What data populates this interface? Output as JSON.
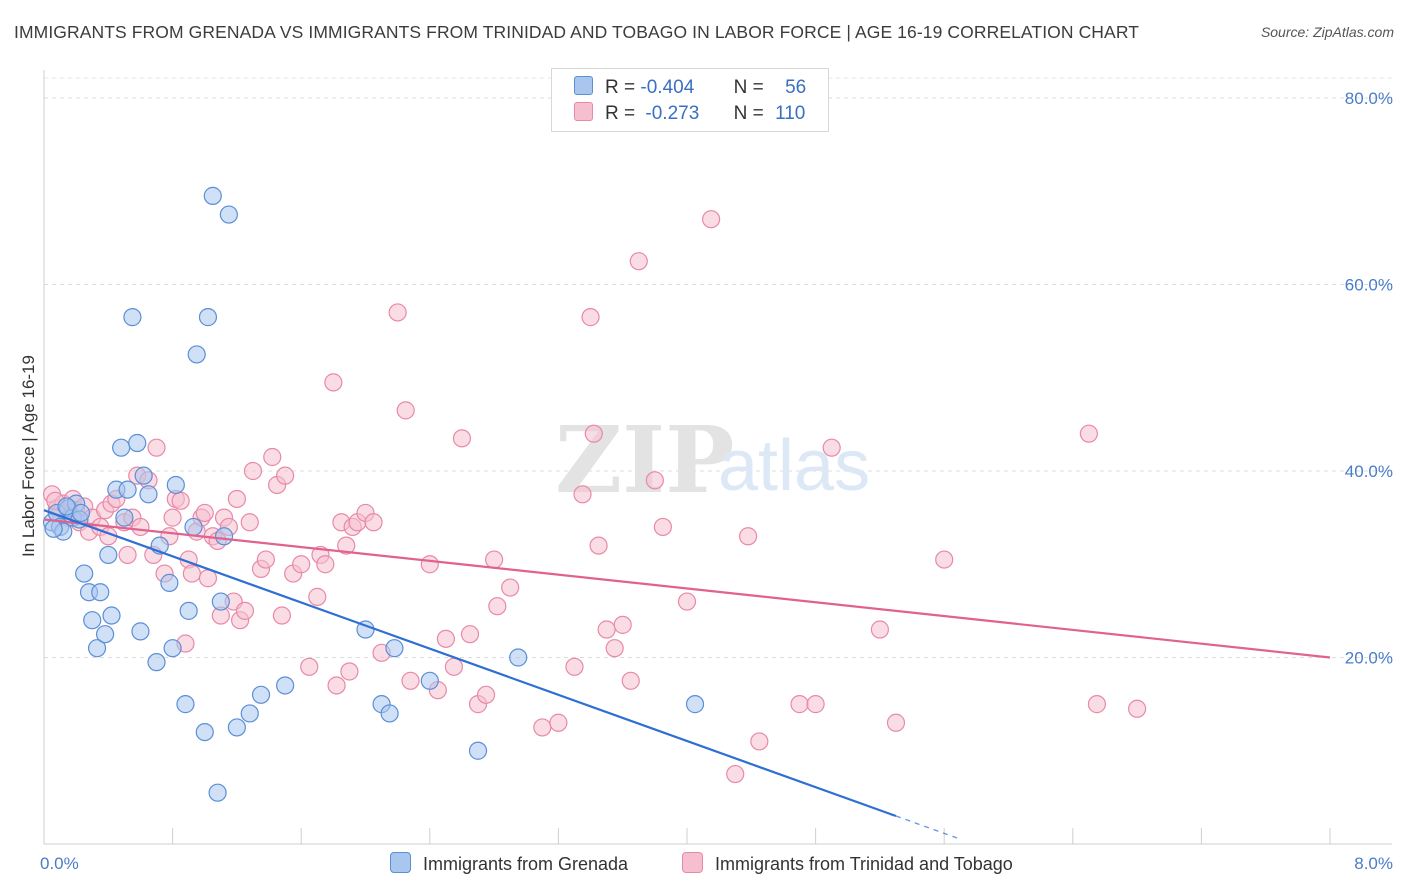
{
  "header": {
    "title": "IMMIGRANTS FROM GRENADA VS IMMIGRANTS FROM TRINIDAD AND TOBAGO IN LABOR FORCE | AGE 16-19 CORRELATION CHART",
    "source": "Source: ZipAtlas.com"
  },
  "legend": {
    "r_label": "R =",
    "n_label": "N =",
    "rows": [
      {
        "r": "-0.404",
        "n": "56"
      },
      {
        "r": "-0.273",
        "n": "110"
      }
    ]
  },
  "watermark": {
    "zip": "ZIP",
    "atlas": "atlas"
  },
  "colors": {
    "grenada_fill": "#a9c6ef",
    "grenada_stroke": "#5b8fd6",
    "grenada_line": "#2e6fd4",
    "trinidad_fill": "#f6bfd0",
    "trinidad_stroke": "#e889a8",
    "trinidad_line": "#e0628e",
    "tick_label": "#4a7cc9"
  },
  "chart_data": {
    "type": "scatter",
    "title": "IMMIGRANTS FROM GRENADA VS IMMIGRANTS FROM TRINIDAD AND TOBAGO IN LABOR FORCE | AGE 16-19 CORRELATION CHART",
    "xlabel": "",
    "ylabel": "In Labor Force | Age 16-19",
    "xlim": [
      0,
      8
    ],
    "ylim": [
      0,
      83
    ],
    "x_tick_labels": [
      {
        "value": 0,
        "label": "0.0%"
      },
      {
        "value": 8,
        "label": "8.0%"
      }
    ],
    "y_ticks": [
      {
        "value": 20,
        "label": "20.0%"
      },
      {
        "value": 40,
        "label": "40.0%"
      },
      {
        "value": 60,
        "label": "60.0%"
      },
      {
        "value": 80,
        "label": "80.0%"
      }
    ],
    "grid": "horizontal dashed",
    "legend_position": "top-center",
    "series": [
      {
        "name": "Immigrants from Grenada",
        "r": -0.404,
        "n": 56,
        "trend": {
          "x0": 0,
          "y0": 35.8,
          "x1": 5.3,
          "y1": 3.0,
          "dashed_to_x": 5.7
        },
        "points": [
          [
            0.05,
            34.5
          ],
          [
            0.08,
            35.5
          ],
          [
            0.1,
            34.0
          ],
          [
            0.12,
            33.5
          ],
          [
            0.15,
            36.0
          ],
          [
            0.18,
            35.0
          ],
          [
            0.2,
            36.5
          ],
          [
            0.22,
            34.8
          ],
          [
            0.25,
            29.0
          ],
          [
            0.28,
            27.0
          ],
          [
            0.3,
            24.0
          ],
          [
            0.33,
            21.0
          ],
          [
            0.35,
            27.0
          ],
          [
            0.38,
            22.5
          ],
          [
            0.4,
            31.0
          ],
          [
            0.42,
            24.5
          ],
          [
            0.45,
            38.0
          ],
          [
            0.48,
            42.5
          ],
          [
            0.5,
            35.0
          ],
          [
            0.52,
            38.0
          ],
          [
            0.55,
            56.5
          ],
          [
            0.58,
            43.0
          ],
          [
            0.6,
            22.8
          ],
          [
            0.62,
            39.5
          ],
          [
            0.65,
            37.5
          ],
          [
            0.7,
            19.5
          ],
          [
            0.72,
            32.0
          ],
          [
            0.78,
            28.0
          ],
          [
            0.8,
            21.0
          ],
          [
            0.82,
            38.5
          ],
          [
            0.88,
            15.0
          ],
          [
            0.9,
            25.0
          ],
          [
            0.93,
            34.0
          ],
          [
            0.95,
            52.5
          ],
          [
            1.0,
            12.0
          ],
          [
            1.02,
            56.5
          ],
          [
            1.05,
            69.5
          ],
          [
            1.08,
            5.5
          ],
          [
            1.1,
            26.0
          ],
          [
            1.12,
            33.0
          ],
          [
            1.15,
            67.5
          ],
          [
            1.2,
            12.5
          ],
          [
            1.28,
            14.0
          ],
          [
            1.35,
            16.0
          ],
          [
            1.5,
            17.0
          ],
          [
            2.0,
            23.0
          ],
          [
            2.1,
            15.0
          ],
          [
            2.15,
            14.0
          ],
          [
            2.18,
            21.0
          ],
          [
            2.4,
            17.5
          ],
          [
            2.7,
            10.0
          ],
          [
            2.95,
            20.0
          ],
          [
            4.05,
            15.0
          ],
          [
            0.06,
            33.8
          ],
          [
            0.14,
            36.2
          ],
          [
            0.23,
            35.5
          ]
        ]
      },
      {
        "name": "Immigrants from Trinidad and Tobago",
        "r": -0.273,
        "n": 110,
        "trend": {
          "x0": 0,
          "y0": 34.8,
          "x1": 8.0,
          "y1": 20.0
        },
        "points": [
          [
            0.05,
            37.5
          ],
          [
            0.08,
            36.0
          ],
          [
            0.1,
            35.5
          ],
          [
            0.12,
            36.5
          ],
          [
            0.15,
            35.0
          ],
          [
            0.18,
            37.0
          ],
          [
            0.2,
            35.8
          ],
          [
            0.22,
            34.5
          ],
          [
            0.25,
            36.2
          ],
          [
            0.28,
            33.5
          ],
          [
            0.3,
            35.0
          ],
          [
            0.35,
            34.0
          ],
          [
            0.38,
            35.8
          ],
          [
            0.4,
            33.0
          ],
          [
            0.42,
            36.5
          ],
          [
            0.45,
            37.0
          ],
          [
            0.5,
            34.5
          ],
          [
            0.52,
            31.0
          ],
          [
            0.55,
            35.0
          ],
          [
            0.58,
            39.5
          ],
          [
            0.6,
            34.0
          ],
          [
            0.65,
            39.0
          ],
          [
            0.68,
            31.0
          ],
          [
            0.7,
            42.5
          ],
          [
            0.75,
            29.0
          ],
          [
            0.78,
            33.0
          ],
          [
            0.8,
            35.0
          ],
          [
            0.82,
            37.0
          ],
          [
            0.85,
            36.8
          ],
          [
            0.88,
            21.5
          ],
          [
            0.9,
            30.5
          ],
          [
            0.92,
            29.0
          ],
          [
            0.95,
            33.5
          ],
          [
            0.98,
            35.0
          ],
          [
            1.0,
            35.5
          ],
          [
            1.02,
            28.5
          ],
          [
            1.05,
            33.0
          ],
          [
            1.08,
            32.5
          ],
          [
            1.1,
            24.5
          ],
          [
            1.12,
            35.0
          ],
          [
            1.15,
            34.0
          ],
          [
            1.18,
            26.0
          ],
          [
            1.2,
            37.0
          ],
          [
            1.22,
            24.0
          ],
          [
            1.25,
            25.0
          ],
          [
            1.28,
            34.5
          ],
          [
            1.3,
            40.0
          ],
          [
            1.35,
            29.5
          ],
          [
            1.38,
            30.5
          ],
          [
            1.42,
            41.5
          ],
          [
            1.45,
            38.5
          ],
          [
            1.48,
            24.5
          ],
          [
            1.5,
            39.5
          ],
          [
            1.55,
            29.0
          ],
          [
            1.6,
            30.0
          ],
          [
            1.65,
            19.0
          ],
          [
            1.7,
            26.5
          ],
          [
            1.72,
            31.0
          ],
          [
            1.75,
            30.0
          ],
          [
            1.8,
            49.5
          ],
          [
            1.82,
            17.0
          ],
          [
            1.85,
            34.5
          ],
          [
            1.88,
            32.0
          ],
          [
            1.9,
            18.5
          ],
          [
            1.92,
            34.0
          ],
          [
            1.95,
            34.5
          ],
          [
            2.0,
            35.5
          ],
          [
            2.05,
            34.5
          ],
          [
            2.1,
            20.5
          ],
          [
            2.2,
            57.0
          ],
          [
            2.25,
            46.5
          ],
          [
            2.28,
            17.5
          ],
          [
            2.4,
            30.0
          ],
          [
            2.45,
            16.5
          ],
          [
            2.5,
            22.0
          ],
          [
            2.55,
            19.0
          ],
          [
            2.6,
            43.5
          ],
          [
            2.65,
            22.5
          ],
          [
            2.7,
            15.0
          ],
          [
            2.75,
            16.0
          ],
          [
            2.8,
            30.5
          ],
          [
            2.82,
            25.5
          ],
          [
            2.9,
            27.5
          ],
          [
            3.1,
            12.5
          ],
          [
            3.2,
            13.0
          ],
          [
            3.3,
            19.0
          ],
          [
            3.35,
            37.5
          ],
          [
            3.4,
            56.5
          ],
          [
            3.42,
            44.0
          ],
          [
            3.45,
            32.0
          ],
          [
            3.5,
            23.0
          ],
          [
            3.55,
            21.0
          ],
          [
            3.6,
            23.5
          ],
          [
            3.65,
            17.5
          ],
          [
            3.7,
            62.5
          ],
          [
            3.8,
            39.0
          ],
          [
            3.85,
            34.0
          ],
          [
            4.0,
            26.0
          ],
          [
            4.15,
            67.0
          ],
          [
            4.3,
            7.5
          ],
          [
            4.38,
            33.0
          ],
          [
            4.45,
            11.0
          ],
          [
            4.7,
            15.0
          ],
          [
            4.8,
            15.0
          ],
          [
            4.9,
            42.5
          ],
          [
            5.2,
            23.0
          ],
          [
            5.3,
            13.0
          ],
          [
            5.6,
            30.5
          ],
          [
            6.5,
            44.0
          ],
          [
            6.55,
            15.0
          ],
          [
            6.8,
            14.5
          ],
          [
            0.07,
            36.8
          ]
        ]
      }
    ]
  }
}
